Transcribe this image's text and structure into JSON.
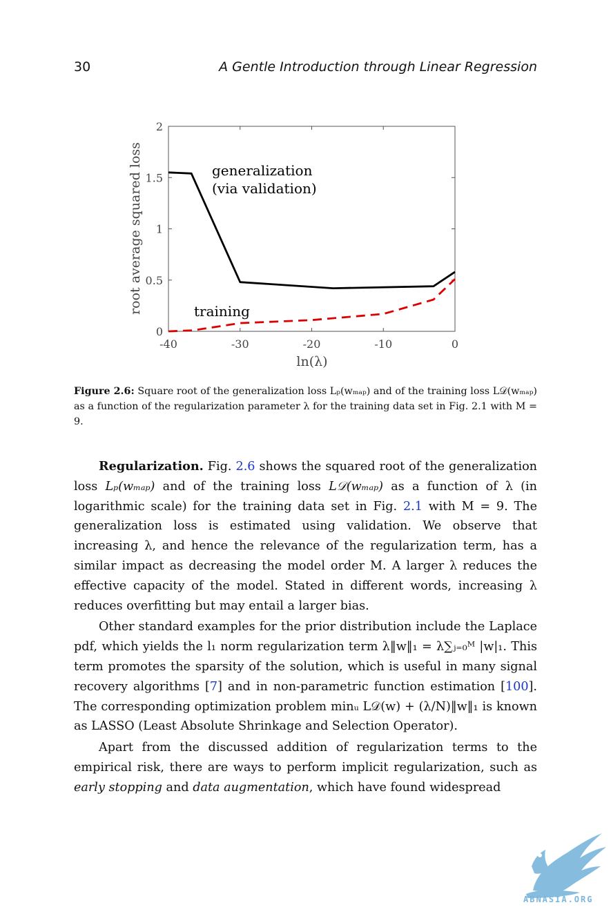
{
  "header": {
    "page_number": "30",
    "running_title": "A Gentle Introduction through Linear Regression"
  },
  "figure": {
    "annotations": {
      "generalization_line1": "generalization",
      "generalization_line2": "(via validation)",
      "training": "training"
    },
    "caption": {
      "label": "Figure 2.6:",
      "text": "Square root of the generalization loss Lₚ(wₘₐₚ) and of the training loss L𝒟(wₘₐₚ) as a function of the regularization parameter λ for the training data set in Fig. 2.1 with M = 9."
    }
  },
  "chart_data": {
    "type": "line",
    "title": "",
    "xlabel": "ln(λ)",
    "ylabel": "root average squared loss",
    "xlim": [
      -40,
      0
    ],
    "ylim": [
      0,
      2
    ],
    "xticks": [
      -40,
      -30,
      -20,
      -10,
      0
    ],
    "xtick_labels": [
      "-40",
      "-30",
      "-20",
      "-10",
      "0"
    ],
    "yticks": [
      0,
      0.5,
      1,
      1.5,
      2
    ],
    "ytick_labels": [
      "0",
      "0.5",
      "1",
      "1.5",
      "2"
    ],
    "grid": false,
    "series": [
      {
        "style": "solid",
        "color": "#000000",
        "x": [
          -40,
          -36.8,
          -30,
          -17,
          -3,
          0
        ],
        "y": [
          1.55,
          1.54,
          0.48,
          0.42,
          0.44,
          0.58
        ]
      },
      {
        "style": "dashed",
        "color": "#dd0000",
        "x": [
          -40,
          -36.5,
          -30,
          -20,
          -10,
          -3,
          0
        ],
        "y": [
          0.0,
          0.01,
          0.08,
          0.11,
          0.17,
          0.31,
          0.51
        ]
      }
    ]
  },
  "body": {
    "p1_bold": "Regularization.",
    "p1_a": " Fig. ",
    "p1_ref1": "2.6",
    "p1_b": " shows the squared root of the generalization loss ",
    "p1_c": " and of the training loss ",
    "p1_d": " as a function of λ (in logarithmic scale) for the training data set in Fig. ",
    "p1_ref2": "2.1",
    "p1_e": " with M = 9. The generalization loss is estimated using validation. We observe that increasing λ, and hence the relevance of the regularization term, has a similar impact as decreasing the model order M. A larger λ reduces the effective capacity of the model. Stated in different words, increasing λ reduces overfitting but may entail a larger bias.",
    "p2_a": "Other standard examples for the prior distribution include the Laplace pdf, which yields the l₁ norm regularization term λ‖w‖₁ = λ∑ⱼ₌₀ᴹ |w|₁. This term promotes the sparsity of the solution, which is useful in many signal recovery algorithms [",
    "p2_ref1": "7",
    "p2_b": "] and in non-parametric function estimation [",
    "p2_ref2": "100",
    "p2_c": "]. The corresponding optimization problem minᵤ L𝒟(w) + (λ/N)‖w‖₁ is known as LASSO (Least Absolute Shrinkage and Selection Operator).",
    "p3_a": "Apart from the discussed addition of regularization terms to the empirical risk, there are ways to perform implicit regularization, such as ",
    "p3_em1": "early stopping",
    "p3_b": " and ",
    "p3_em2": "data augmentation",
    "p3_c": ", which have found widespread",
    "loss_p": "Lₚ(wₘₐₚ)",
    "loss_d": "L𝒟(wₘₐₚ)"
  },
  "watermark": {
    "text": "ABNASIA.ORG",
    "color": "#79b6dc"
  }
}
